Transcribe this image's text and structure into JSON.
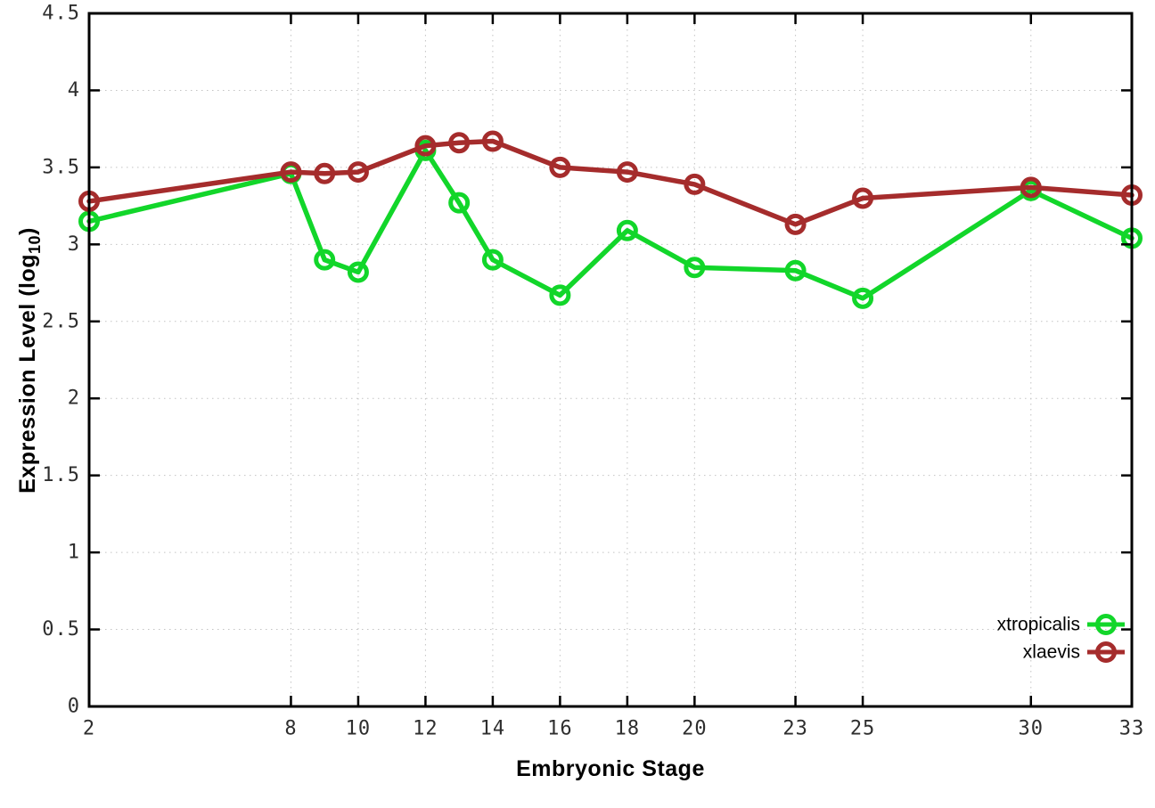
{
  "chart_data": {
    "type": "line",
    "title": "",
    "xlabel": "Embryonic Stage",
    "ylabel": "Expression Level (log10)",
    "ylabel_parts": {
      "prefix": "Expression Level (log",
      "sub": "10",
      "suffix": ")"
    },
    "x": [
      2,
      8,
      9,
      10,
      12,
      13,
      14,
      16,
      18,
      20,
      23,
      25,
      30,
      33
    ],
    "series": [
      {
        "name": "xtropicalis",
        "color": "#12d62a",
        "marker": "open-circle",
        "values": [
          3.15,
          3.46,
          2.9,
          2.82,
          3.61,
          3.27,
          2.9,
          2.67,
          3.09,
          2.85,
          2.83,
          2.65,
          3.35,
          3.04
        ]
      },
      {
        "name": "xlaevis",
        "color": "#a52c2c",
        "marker": "open-circle",
        "values": [
          3.28,
          3.47,
          3.46,
          3.47,
          3.64,
          3.66,
          3.67,
          3.5,
          3.47,
          3.39,
          3.13,
          3.3,
          3.37,
          3.32
        ]
      }
    ],
    "xlim": [
      2,
      33
    ],
    "ylim": [
      0,
      4.5
    ],
    "xticks": {
      "values": [
        2,
        8,
        10,
        12,
        14,
        16,
        18,
        20,
        23,
        25,
        30,
        33
      ],
      "labels": [
        "2",
        "8",
        "10",
        "12",
        "14",
        "16",
        "18",
        "20",
        "23",
        "25",
        "30",
        "33"
      ]
    },
    "yticks": {
      "values": [
        0,
        0.5,
        1,
        1.5,
        2,
        2.5,
        3,
        3.5,
        4,
        4.5
      ],
      "labels": [
        "0",
        "0.5",
        "1",
        "1.5",
        "2",
        "2.5",
        "3",
        "3.5",
        "4",
        "4.5"
      ]
    },
    "grid": true,
    "legend_position": "inside-bottom-right",
    "legend_entries": [
      "xtropicalis",
      "xlaevis"
    ],
    "colors": {
      "background": "#ffffff",
      "border": "#000000",
      "grid": "#c3c3c3",
      "tick_label": "#2e2e2e",
      "axis_title": "#000000",
      "legend_text": "#000000"
    }
  }
}
